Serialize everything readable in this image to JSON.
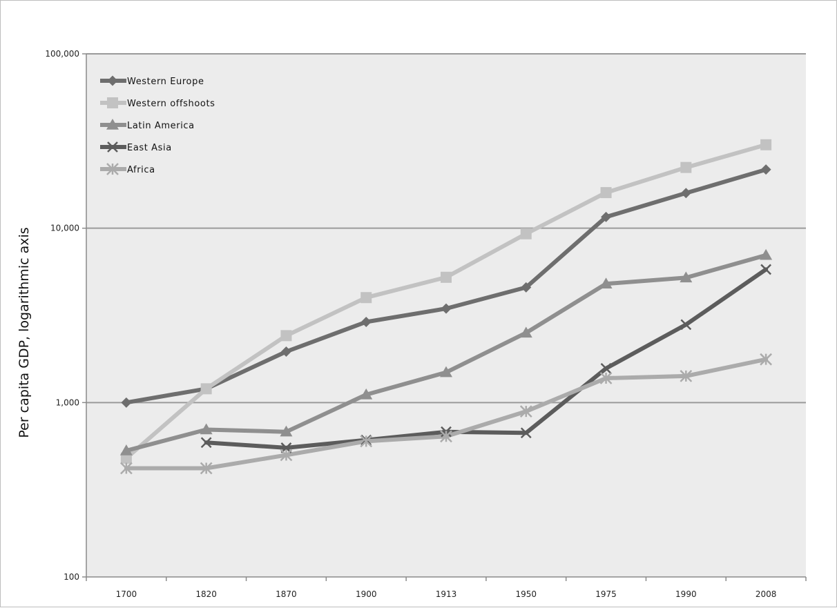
{
  "chart_data": {
    "type": "line",
    "title": "",
    "xlabel": "",
    "ylabel": "Per capita GDP, logarithmic axis",
    "y_scale": "log",
    "ylim": [
      100,
      100000
    ],
    "y_ticks": [
      100,
      1000,
      10000,
      100000
    ],
    "y_tick_labels": [
      "100",
      "1,000",
      "10,000",
      "100,000"
    ],
    "categories": [
      "1700",
      "1820",
      "1870",
      "1900",
      "1913",
      "1950",
      "1975",
      "1990",
      "2008"
    ],
    "grid": "horizontal",
    "legend_position": "top-left",
    "series": [
      {
        "name": "Western Europe",
        "marker": "diamond",
        "color": "#6e6e6e",
        "values": [
          1000,
          1200,
          1960,
          2900,
          3460,
          4580,
          11600,
          15900,
          21700
        ]
      },
      {
        "name": "Western offshoots",
        "marker": "square",
        "color": "#c2c2c2",
        "values": [
          480,
          1200,
          2420,
          4000,
          5230,
          9290,
          16000,
          22300,
          30100
        ]
      },
      {
        "name": "Latin America",
        "marker": "triangle",
        "color": "#8f8f8f",
        "values": [
          530,
          700,
          680,
          1110,
          1490,
          2510,
          4800,
          5200,
          7000
        ]
      },
      {
        "name": "East Asia",
        "marker": "x",
        "color": "#5c5c5c",
        "values": [
          null,
          590,
          550,
          610,
          680,
          670,
          1570,
          2800,
          5800
        ]
      },
      {
        "name": "Africa",
        "marker": "asterisk",
        "color": "#ababab",
        "values": [
          420,
          420,
          500,
          600,
          640,
          890,
          1380,
          1420,
          1770
        ]
      }
    ]
  }
}
